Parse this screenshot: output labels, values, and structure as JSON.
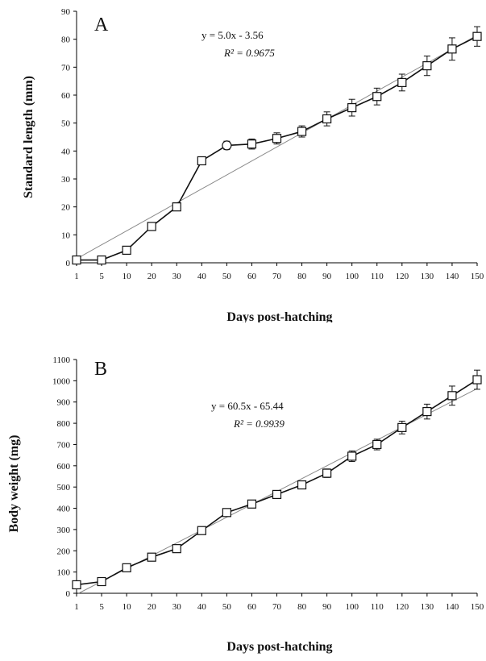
{
  "chart_data": [
    {
      "type": "line",
      "panel_label": "A",
      "xlabel": "Days post-hatching",
      "ylabel": "Standard length (mm)",
      "categories": [
        "1",
        "5",
        "10",
        "20",
        "30",
        "40",
        "50",
        "60",
        "70",
        "80",
        "90",
        "100",
        "110",
        "120",
        "130",
        "140",
        "150"
      ],
      "ylim": [
        0,
        90
      ],
      "yticks": [
        0,
        10,
        20,
        30,
        40,
        50,
        60,
        70,
        80,
        90
      ],
      "series": [
        {
          "values": [
            1,
            1,
            4.5,
            13,
            20,
            36.5,
            42,
            42.5,
            44.5,
            47,
            51.5,
            55.5,
            59.5,
            64.5,
            70.5,
            76.5,
            81
          ],
          "errors": [
            0.3,
            0.3,
            0.5,
            0.8,
            0.8,
            1.2,
            1.5,
            1.8,
            2.0,
            2.0,
            2.5,
            3.0,
            3.0,
            3.0,
            3.5,
            4.0,
            3.5
          ],
          "markers": [
            "square",
            "square",
            "square",
            "square",
            "square",
            "square",
            "circle",
            "square",
            "square",
            "square",
            "square",
            "square",
            "square",
            "square",
            "square",
            "square",
            "square"
          ]
        }
      ],
      "trendline": {
        "equation": "y = 5.0x - 3.56",
        "r2": "R² = 0.9675",
        "slope": 5.0,
        "intercept": -3.56
      },
      "grid": false
    },
    {
      "type": "line",
      "panel_label": "B",
      "xlabel": "Days post-hatching",
      "ylabel": "Body weight (mg)",
      "categories": [
        "1",
        "5",
        "10",
        "20",
        "30",
        "40",
        "50",
        "60",
        "70",
        "80",
        "90",
        "100",
        "110",
        "120",
        "130",
        "140",
        "150"
      ],
      "ylim": [
        0,
        1100
      ],
      "yticks": [
        0,
        100,
        200,
        300,
        400,
        500,
        600,
        700,
        800,
        900,
        1000,
        1100
      ],
      "series": [
        {
          "values": [
            40,
            55,
            120,
            170,
            210,
            295,
            380,
            420,
            465,
            510,
            565,
            645,
            700,
            780,
            855,
            930,
            1005
          ],
          "errors": [
            5,
            5,
            8,
            10,
            10,
            12,
            15,
            15,
            15,
            15,
            20,
            25,
            25,
            30,
            35,
            45,
            45
          ],
          "markers": [
            "square",
            "square",
            "square",
            "square",
            "square",
            "square",
            "square",
            "square",
            "square",
            "square",
            "square",
            "square",
            "square",
            "square",
            "square",
            "square",
            "square"
          ]
        }
      ],
      "trendline": {
        "equation": "y = 60.5x - 65.44",
        "r2": "R² = 0.9939",
        "slope": 60.5,
        "intercept": -65.44
      },
      "grid": false
    }
  ]
}
